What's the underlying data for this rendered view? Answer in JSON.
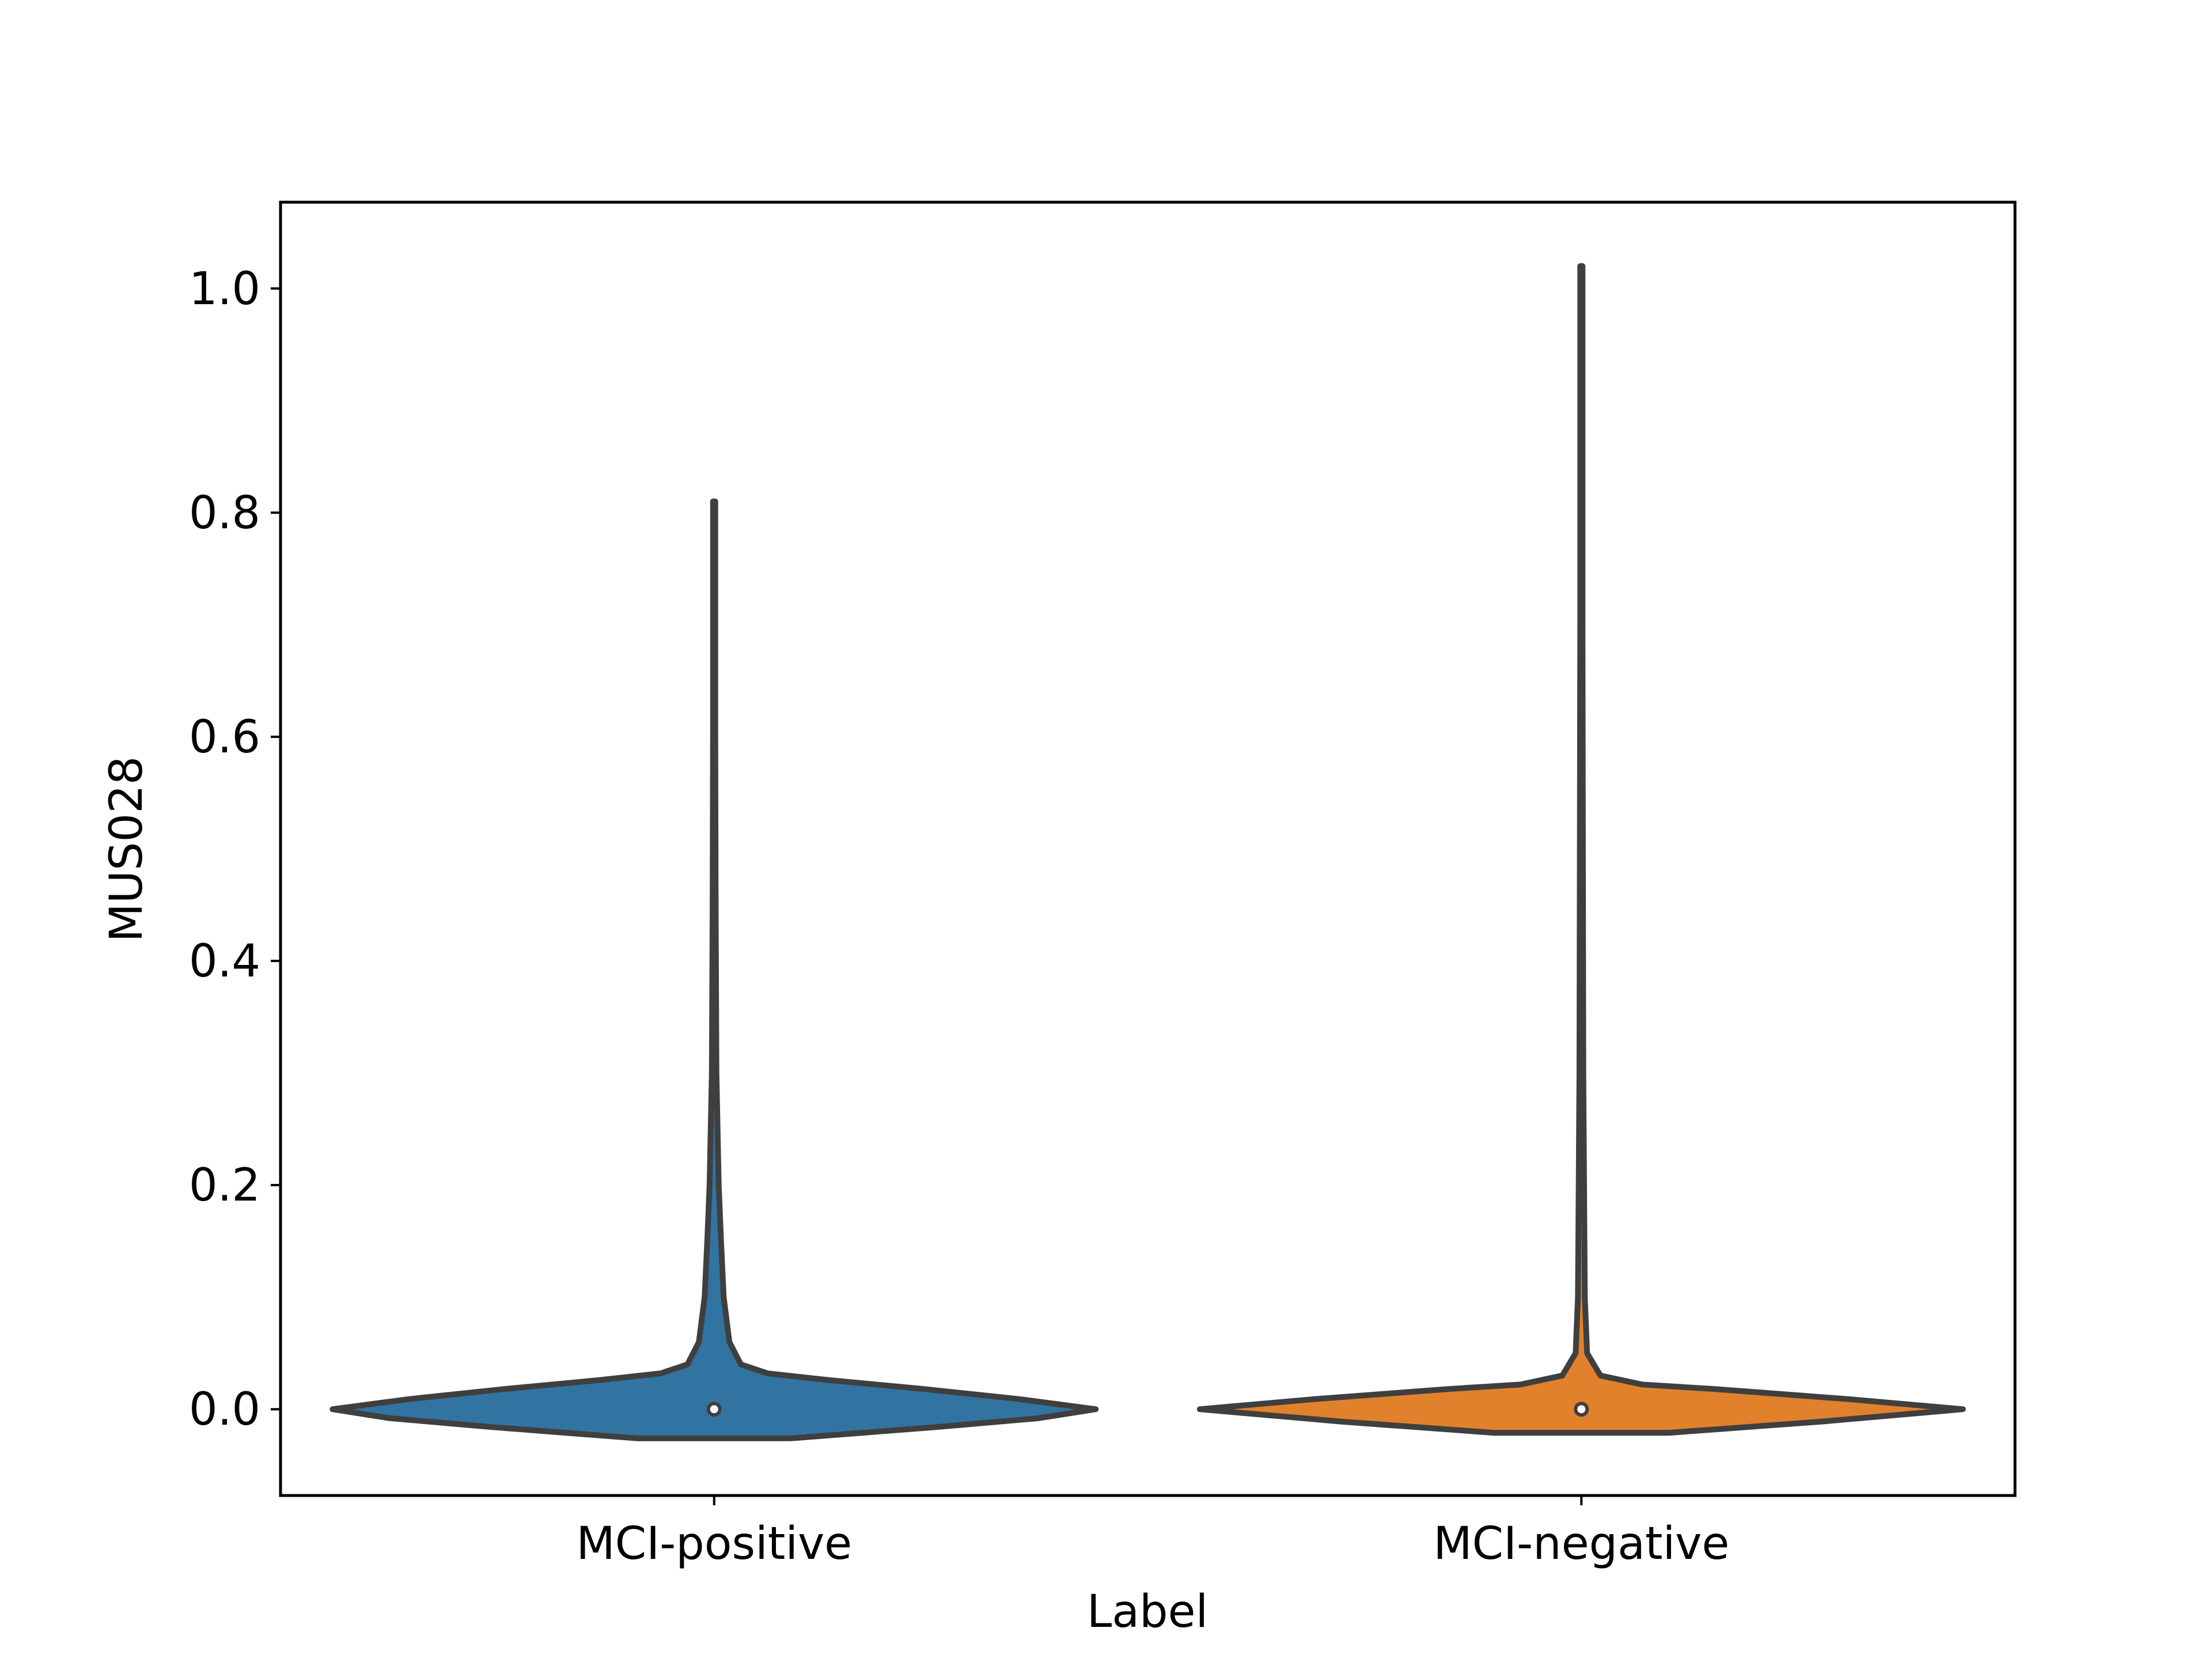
{
  "chart_data": {
    "type": "violin",
    "title": "",
    "xlabel": "Label",
    "ylabel": "MUS028",
    "categories": [
      "MCI-positive",
      "MCI-negative"
    ],
    "ylim": [
      -0.077,
      1.077
    ],
    "yticks": [
      0.0,
      0.2,
      0.4,
      0.6,
      0.8,
      1.0
    ],
    "ytick_labels": [
      "0.0",
      "0.2",
      "0.4",
      "0.6",
      "0.8",
      "1.0"
    ],
    "grid": false,
    "legend": "none",
    "series": [
      {
        "category": "MCI-positive",
        "color": "#3274a1",
        "median": 0.0,
        "max": 0.81,
        "density": [
          {
            "y": -0.026,
            "w": 0.0
          },
          {
            "y": -0.026,
            "w": 0.2
          },
          {
            "y": -0.016,
            "w": 0.58
          },
          {
            "y": -0.008,
            "w": 0.85
          },
          {
            "y": 0.0,
            "w": 1.0
          },
          {
            "y": 0.009,
            "w": 0.8
          },
          {
            "y": 0.018,
            "w": 0.55
          },
          {
            "y": 0.026,
            "w": 0.3
          },
          {
            "y": 0.032,
            "w": 0.14
          },
          {
            "y": 0.04,
            "w": 0.07
          },
          {
            "y": 0.06,
            "w": 0.04
          },
          {
            "y": 0.1,
            "w": 0.025
          },
          {
            "y": 0.15,
            "w": 0.018
          },
          {
            "y": 0.2,
            "w": 0.012
          },
          {
            "y": 0.3,
            "w": 0.006
          },
          {
            "y": 0.45,
            "w": 0.004
          },
          {
            "y": 0.6,
            "w": 0.003
          },
          {
            "y": 0.81,
            "w": 0.003
          }
        ]
      },
      {
        "category": "MCI-negative",
        "color": "#e1812c",
        "median": 0.0,
        "max": 1.02,
        "density": [
          {
            "y": -0.021,
            "w": 0.0
          },
          {
            "y": -0.021,
            "w": 0.23
          },
          {
            "y": -0.011,
            "w": 0.63
          },
          {
            "y": 0.0,
            "w": 1.0
          },
          {
            "y": 0.009,
            "w": 0.7
          },
          {
            "y": 0.018,
            "w": 0.35
          },
          {
            "y": 0.022,
            "w": 0.16
          },
          {
            "y": 0.03,
            "w": 0.05
          },
          {
            "y": 0.05,
            "w": 0.015
          },
          {
            "y": 0.1,
            "w": 0.009
          },
          {
            "y": 0.2,
            "w": 0.007
          },
          {
            "y": 0.3,
            "w": 0.005
          },
          {
            "y": 0.5,
            "w": 0.004
          },
          {
            "y": 0.7,
            "w": 0.003
          },
          {
            "y": 1.02,
            "w": 0.003
          }
        ]
      }
    ]
  }
}
